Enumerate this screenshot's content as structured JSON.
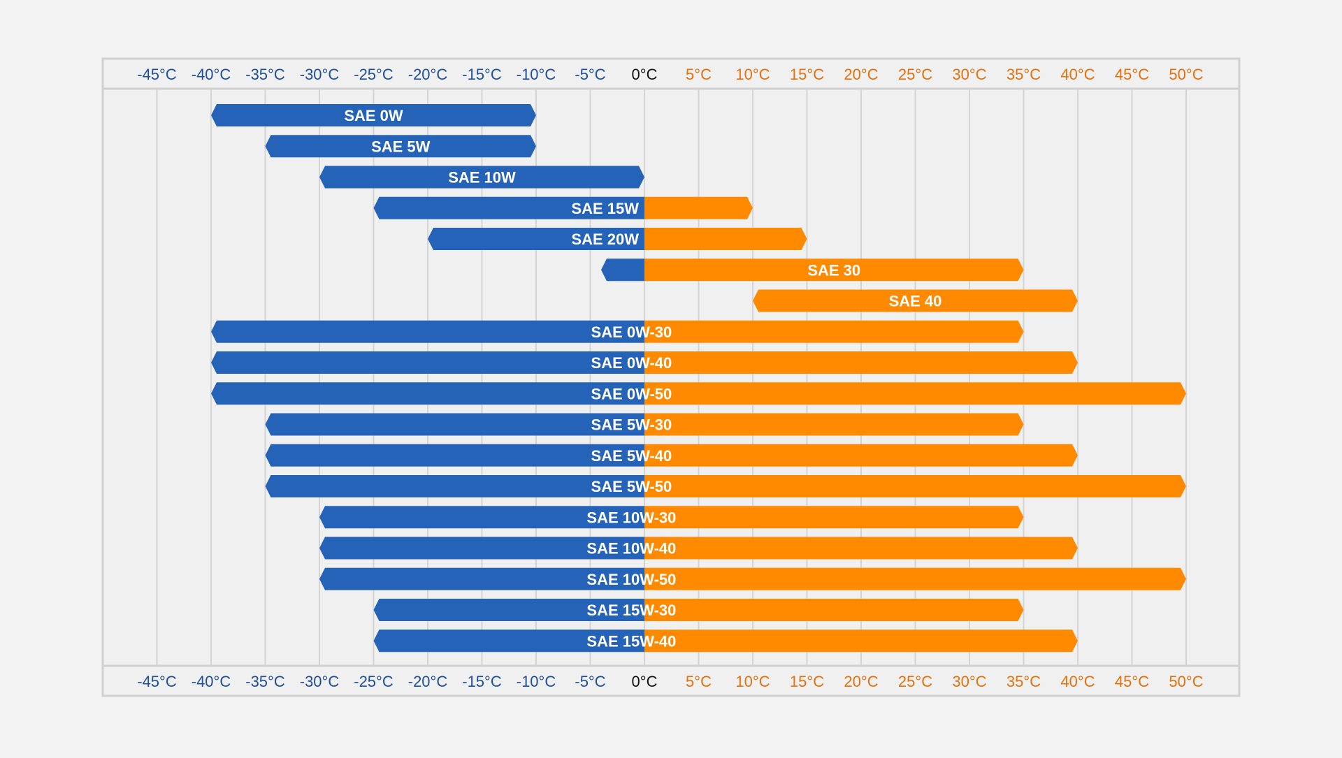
{
  "chart_data": {
    "type": "bar",
    "orientation": "horizontal-range",
    "title": "",
    "xlabel": "",
    "ylabel": "",
    "x_unit": "°C",
    "xlim": [
      -50,
      55
    ],
    "x_ticks": [
      -45,
      -40,
      -35,
      -30,
      -25,
      -20,
      -15,
      -10,
      -5,
      0,
      5,
      10,
      15,
      20,
      25,
      30,
      35,
      40,
      45,
      50
    ],
    "x_tick_labels": [
      "-45°C",
      "-40°C",
      "-35°C",
      "-30°C",
      "-25°C",
      "-20°C",
      "-15°C",
      "-10°C",
      "-5°C",
      "0°C",
      "5°C",
      "10°C",
      "15°C",
      "20°C",
      "25°C",
      "30°C",
      "35°C",
      "40°C",
      "45°C",
      "50°C"
    ],
    "axis_positions": [
      "top",
      "bottom"
    ],
    "grid": true,
    "legend": "none",
    "colors": {
      "cold": "#2563b8",
      "hot": "#ff8a00",
      "cold_tick": "#1e4f9c",
      "hot_tick": "#e8700a",
      "zero_tick": "#111111",
      "grid": "#d4d4d4",
      "frame": "#d0d0d0",
      "plot_bg": "#f0f0f0",
      "bar_text": "#ffffff"
    },
    "series": [
      {
        "label": "SAE 0W",
        "min": -40,
        "max": -10
      },
      {
        "label": "SAE 5W",
        "min": -35,
        "max": -10
      },
      {
        "label": "SAE 10W",
        "min": -30,
        "max": 0
      },
      {
        "label": "SAE 15W",
        "min": -25,
        "max": 10
      },
      {
        "label": "SAE 20W",
        "min": -20,
        "max": 15
      },
      {
        "label": "SAE 30",
        "min": -4,
        "max": 35
      },
      {
        "label": "SAE 40",
        "min": 10,
        "max": 40
      },
      {
        "label": "SAE 0W-30",
        "min": -40,
        "max": 35
      },
      {
        "label": "SAE 0W-40",
        "min": -40,
        "max": 40
      },
      {
        "label": "SAE 0W-50",
        "min": -40,
        "max": 50
      },
      {
        "label": "SAE 5W-30",
        "min": -35,
        "max": 35
      },
      {
        "label": "SAE 5W-40",
        "min": -35,
        "max": 40
      },
      {
        "label": "SAE 5W-50",
        "min": -35,
        "max": 50
      },
      {
        "label": "SAE 10W-30",
        "min": -30,
        "max": 35
      },
      {
        "label": "SAE 10W-40",
        "min": -30,
        "max": 40
      },
      {
        "label": "SAE 10W-50",
        "min": -30,
        "max": 50
      },
      {
        "label": "SAE 15W-30",
        "min": -25,
        "max": 35
      },
      {
        "label": "SAE 15W-40",
        "min": -25,
        "max": 40
      }
    ]
  }
}
